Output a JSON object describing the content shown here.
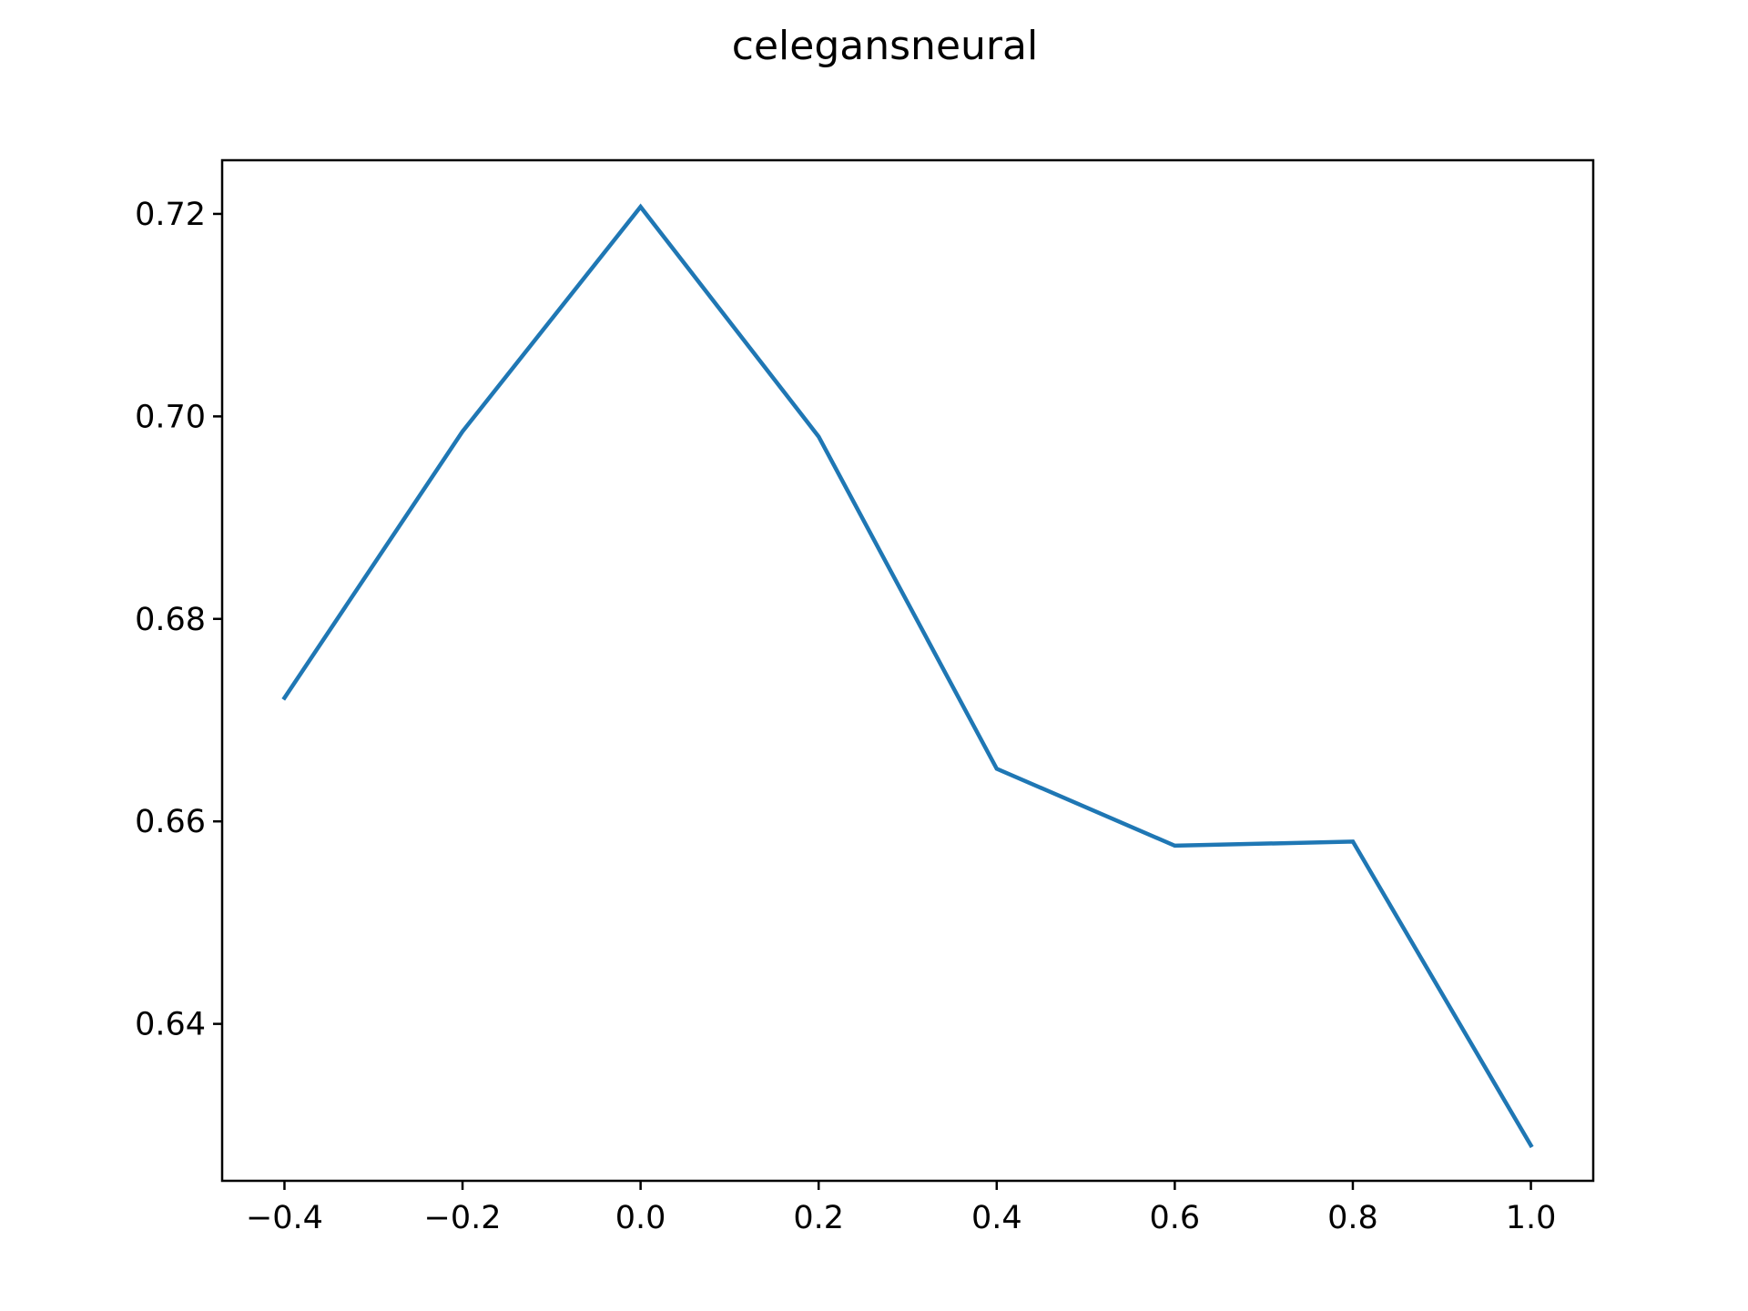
{
  "chart_data": {
    "type": "line",
    "title": "celegansneural",
    "xlabel": "",
    "ylabel": "",
    "xlim": [
      -0.47,
      1.07
    ],
    "ylim": [
      0.6245,
      0.7253
    ],
    "xticks": [
      -0.4,
      -0.2,
      0.0,
      0.2,
      0.4,
      0.6,
      0.8,
      1.0
    ],
    "xtick_labels": [
      "−0.4",
      "−0.2",
      "0.0",
      "0.2",
      "0.4",
      "0.6",
      "0.8",
      "1.0"
    ],
    "yticks": [
      0.64,
      0.66,
      0.68,
      0.7,
      0.72
    ],
    "ytick_labels": [
      "0.64",
      "0.66",
      "0.68",
      "0.70",
      "0.72"
    ],
    "grid": false,
    "series": [
      {
        "color": "#1f77b4",
        "x": [
          -0.4,
          -0.2,
          0.0,
          0.2,
          0.4,
          0.6,
          0.8,
          1.0
        ],
        "y": [
          0.6722,
          0.6985,
          0.7207,
          0.698,
          0.6652,
          0.6576,
          0.658,
          0.628
        ]
      }
    ]
  }
}
